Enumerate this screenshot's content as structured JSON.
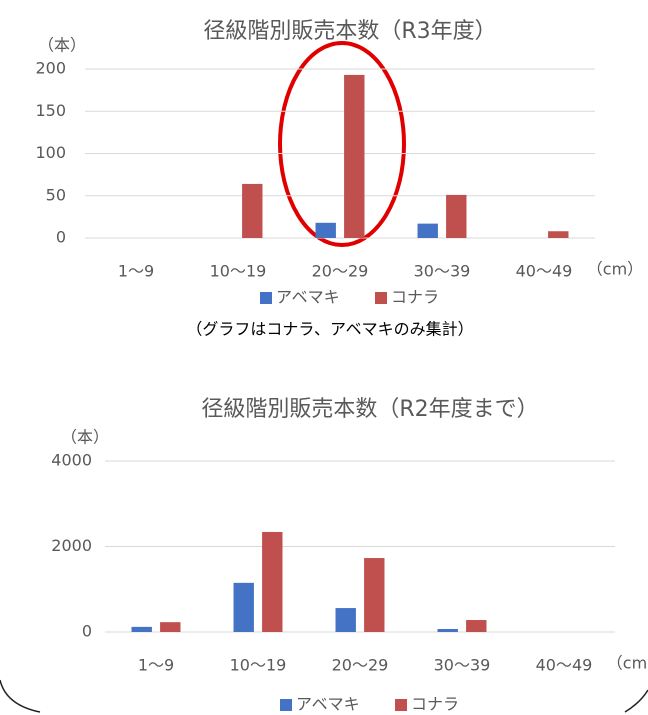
{
  "chart_data": [
    {
      "type": "bar",
      "title": "径級階別販売本数（R3年度）",
      "y_label": "（本）",
      "x_label": "（cm）",
      "categories": [
        "1～9",
        "10～19",
        "20～29",
        "30～39",
        "40～49"
      ],
      "series": [
        {
          "name": "アベマキ",
          "color": "#4472c4",
          "values": [
            0,
            0,
            18,
            17,
            0
          ]
        },
        {
          "name": "コナラ",
          "color": "#c0504d",
          "values": [
            0,
            64,
            193,
            51,
            8
          ]
        }
      ],
      "ylim": [
        0,
        200
      ],
      "yticks": [
        0,
        50,
        100,
        150,
        200
      ],
      "grid": true,
      "legend": "bottom",
      "note": "（グラフはコナラ、アベマキのみ集計）"
    },
    {
      "type": "bar",
      "title": "径級階別販売本数（R2年度まで）",
      "y_label": "（本）",
      "x_label": "（cm）",
      "categories": [
        "1～9",
        "10～19",
        "20～29",
        "30～39",
        "40～49"
      ],
      "series": [
        {
          "name": "アベマキ",
          "color": "#4472c4",
          "values": [
            120,
            1150,
            560,
            70,
            0
          ]
        },
        {
          "name": "コナラ",
          "color": "#c0504d",
          "values": [
            230,
            2340,
            1730,
            280,
            0
          ]
        }
      ],
      "ylim": [
        0,
        4000
      ],
      "yticks": [
        0,
        2000,
        4000
      ],
      "grid": true,
      "legend": "bottom"
    }
  ]
}
